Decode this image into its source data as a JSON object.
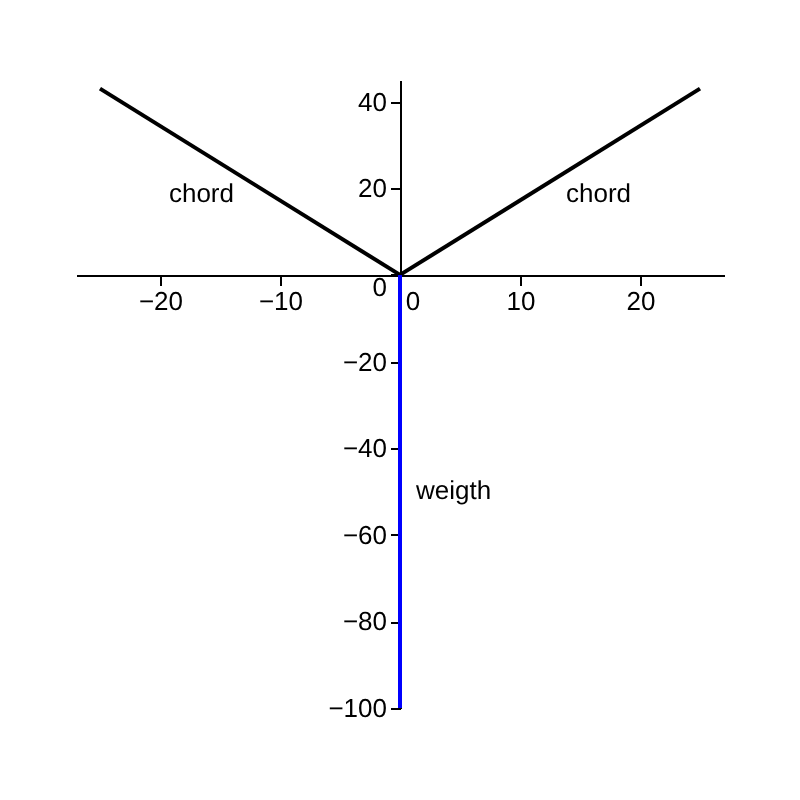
{
  "chart_data": {
    "type": "line",
    "xlim": [
      -27,
      27
    ],
    "ylim": [
      -100,
      45
    ],
    "xticks": [
      -20,
      -10,
      0,
      10,
      20
    ],
    "yticks": [
      -100,
      -80,
      -60,
      -40,
      -20,
      0,
      20,
      40
    ],
    "grid": false,
    "legend": false,
    "marker": "none",
    "line_style": "solid",
    "series": [
      {
        "color": "#000000",
        "x": [
          0,
          -25
        ],
        "values": [
          0,
          43
        ]
      },
      {
        "color": "#000000",
        "x": [
          0,
          25
        ],
        "values": [
          0,
          43
        ]
      },
      {
        "color": "#0000ff",
        "x": [
          0,
          0
        ],
        "values": [
          0,
          -100
        ]
      }
    ],
    "annotations": [
      "chord",
      "chord",
      "weigth"
    ]
  }
}
